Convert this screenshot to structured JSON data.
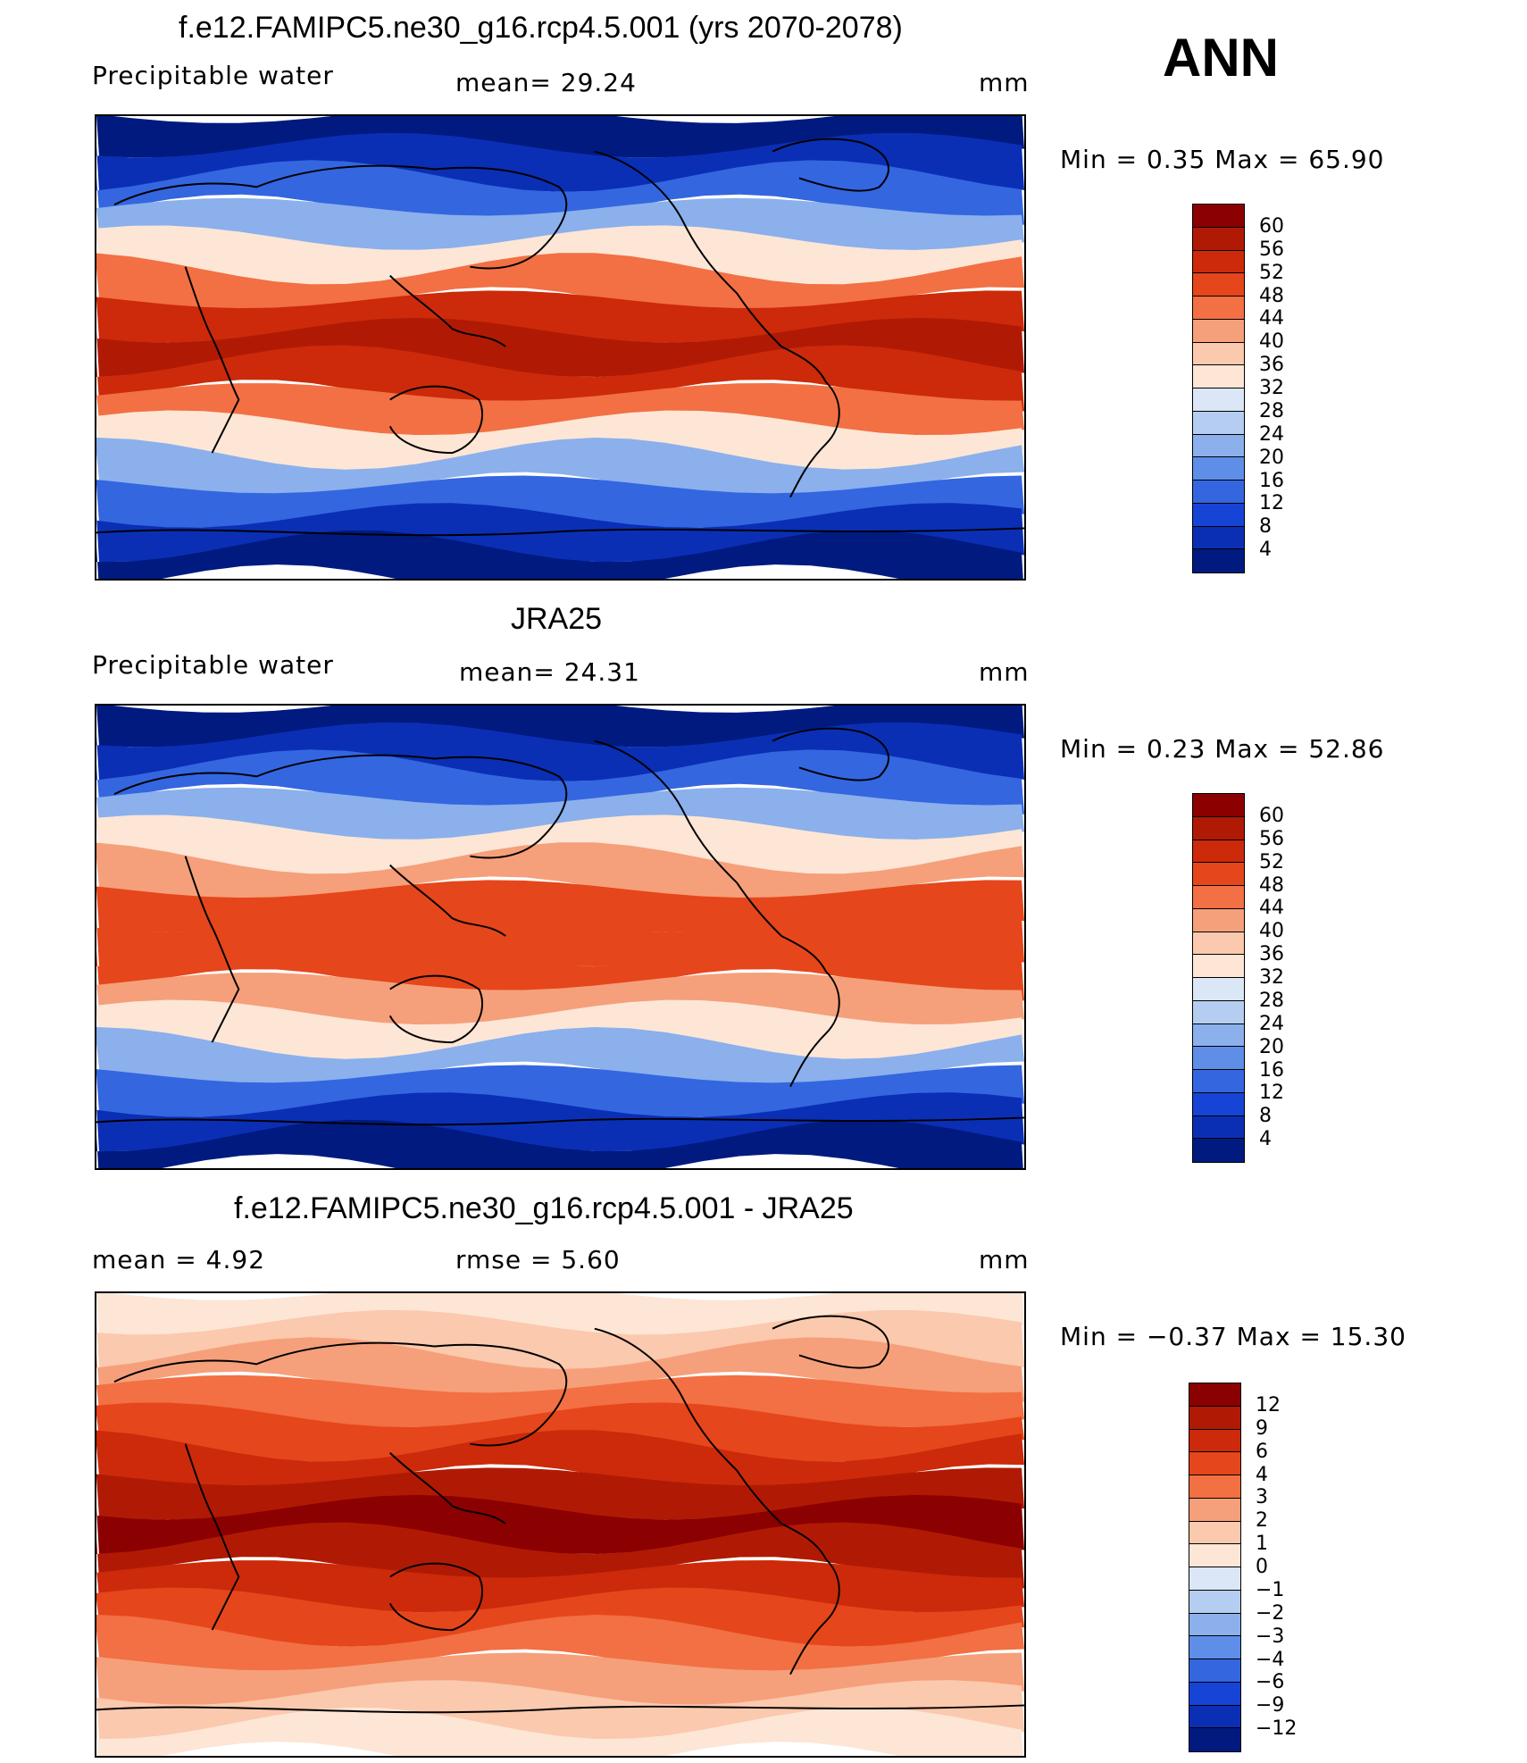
{
  "season": "ANN",
  "panels": [
    {
      "title": "f.e12.FAMIPC5.ne30_g16.rcp4.5.001 (yrs 2070-2078)",
      "left_label": "Precipitable  water",
      "center_label": "mean=   29.24",
      "units": "mm",
      "minmax": "Min  =      0.35  Max  =     65.90",
      "levels": [
        "60",
        "56",
        "52",
        "48",
        "44",
        "40",
        "36",
        "32",
        "28",
        "24",
        "20",
        "16",
        "12",
        "8",
        "4"
      ],
      "colors": [
        "#8b0000",
        "#b01a05",
        "#cc2a0a",
        "#e6461b",
        "#f27043",
        "#f5a07b",
        "#fbc9ad",
        "#fde6d6",
        "#dbe7f6",
        "#b5cdf0",
        "#8bb0ec",
        "#5f8ee8",
        "#3466e0",
        "#1644d6",
        "#0a2fb5",
        "#001a80"
      ],
      "map_colors": [
        "#001a80",
        "#0a2fb5",
        "#3466e0",
        "#8bb0ec",
        "#fde6d6",
        "#f27043",
        "#cc2a0a",
        "#b01a05"
      ]
    },
    {
      "title": "JRA25",
      "left_label": "Precipitable  water",
      "center_label": "mean=   24.31",
      "units": "mm",
      "minmax": "Min  =      0.23  Max  =     52.86",
      "levels": [
        "60",
        "56",
        "52",
        "48",
        "44",
        "40",
        "36",
        "32",
        "28",
        "24",
        "20",
        "16",
        "12",
        "8",
        "4"
      ],
      "colors": [
        "#8b0000",
        "#b01a05",
        "#cc2a0a",
        "#e6461b",
        "#f27043",
        "#f5a07b",
        "#fbc9ad",
        "#fde6d6",
        "#dbe7f6",
        "#b5cdf0",
        "#8bb0ec",
        "#5f8ee8",
        "#3466e0",
        "#1644d6",
        "#0a2fb5",
        "#001a80"
      ],
      "map_colors": [
        "#001a80",
        "#0a2fb5",
        "#3466e0",
        "#8bb0ec",
        "#fde6d6",
        "#f5a07b",
        "#e6461b",
        "#e6461b"
      ]
    },
    {
      "title": "f.e12.FAMIPC5.ne30_g16.rcp4.5.001 - JRA25",
      "left_label": "mean  =     4.92",
      "center_label": "rmse  =     5.60",
      "units": "mm",
      "minmax": "Min  =    −0.37  Max  =     15.30",
      "levels": [
        "12",
        "9",
        "6",
        "4",
        "3",
        "2",
        "1",
        "0",
        "−1",
        "−2",
        "−3",
        "−4",
        "−6",
        "−9",
        "−12"
      ],
      "colors": [
        "#8b0000",
        "#b01a05",
        "#cc2a0a",
        "#e6461b",
        "#f27043",
        "#f5a07b",
        "#fbc9ad",
        "#fde6d6",
        "#dbe7f6",
        "#b5cdf0",
        "#8bb0ec",
        "#5f8ee8",
        "#3466e0",
        "#1644d6",
        "#0a2fb5",
        "#001a80"
      ],
      "map_colors": [
        "#fde6d6",
        "#fbc9ad",
        "#f5a07b",
        "#f27043",
        "#e6461b",
        "#cc2a0a",
        "#b01a05",
        "#8b0000"
      ]
    }
  ]
}
